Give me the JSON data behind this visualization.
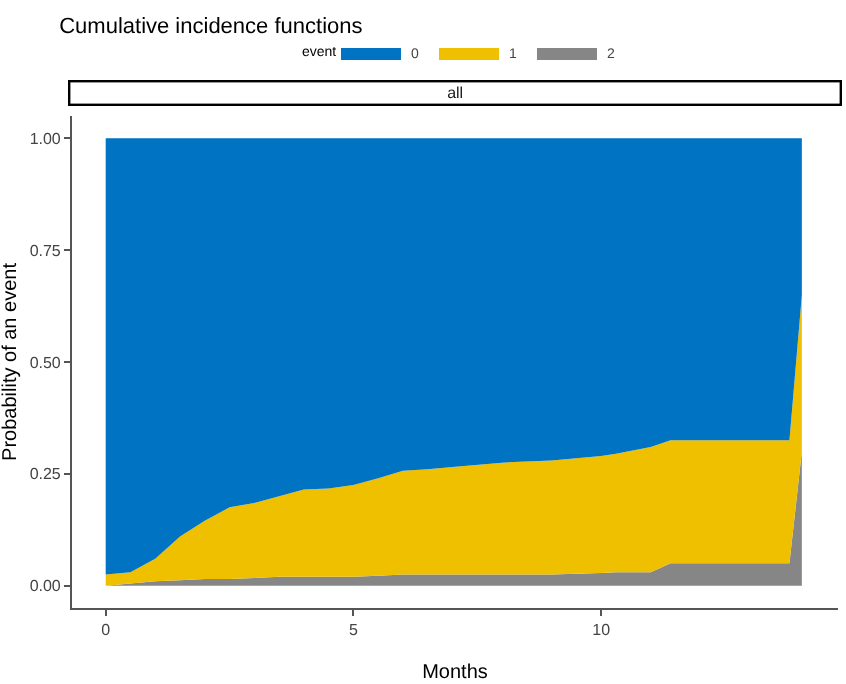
{
  "chart_data": {
    "type": "area",
    "title": "Cumulative incidence functions",
    "xlabel": "Months",
    "ylabel": "Probability of an event",
    "legend_title": "event",
    "annotations": [
      "all"
    ],
    "x": [
      0,
      0.5,
      1,
      1.5,
      2,
      2.5,
      3,
      3.5,
      4,
      4.5,
      5,
      5.5,
      6,
      6.5,
      7,
      8,
      9,
      10,
      10.3,
      11,
      11.4,
      13.8,
      14.05
    ],
    "stacked": true,
    "series": [
      {
        "name": "2",
        "color": "#868686",
        "values": [
          0,
          0.005,
          0.01,
          0.012,
          0.015,
          0.015,
          0.017,
          0.02,
          0.02,
          0.02,
          0.02,
          0.022,
          0.025,
          0.025,
          0.025,
          0.025,
          0.025,
          0.028,
          0.03,
          0.03,
          0.05,
          0.05,
          0.3
        ]
      },
      {
        "name": "1",
        "color": "#efc000",
        "values": [
          0.025,
          0.025,
          0.05,
          0.098,
          0.13,
          0.16,
          0.168,
          0.18,
          0.195,
          0.197,
          0.205,
          0.218,
          0.232,
          0.235,
          0.24,
          0.25,
          0.255,
          0.262,
          0.265,
          0.28,
          0.275,
          0.275,
          0.35
        ]
      },
      {
        "name": "0",
        "color": "#0073c2",
        "values": [
          0.975,
          0.97,
          0.94,
          0.89,
          0.855,
          0.825,
          0.815,
          0.8,
          0.785,
          0.783,
          0.775,
          0.76,
          0.743,
          0.74,
          0.735,
          0.725,
          0.72,
          0.71,
          0.705,
          0.69,
          0.675,
          0.675,
          0.35
        ]
      }
    ],
    "xlim": [
      -0.68,
      14.78
    ],
    "xticks": [
      0,
      5,
      10
    ],
    "ylim": [
      -0.05,
      1.05
    ],
    "yticks": [
      {
        "value": 0,
        "label": "0.00"
      },
      {
        "value": 0.25,
        "label": "0.25"
      },
      {
        "value": 0.5,
        "label": "0.50"
      },
      {
        "value": 0.75,
        "label": "0.75"
      },
      {
        "value": 1,
        "label": "1.00"
      }
    ],
    "grid": false,
    "legend": "top"
  }
}
